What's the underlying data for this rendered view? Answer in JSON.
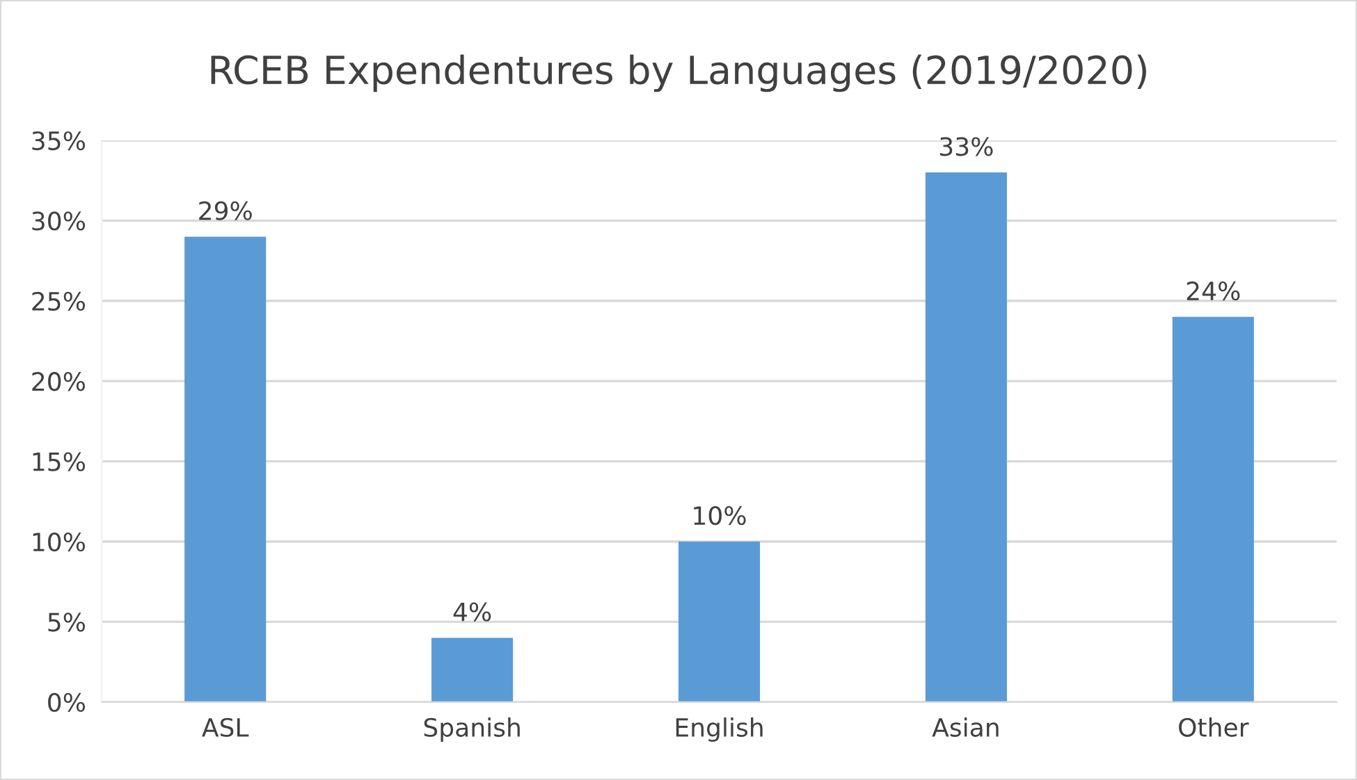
{
  "chart_data": {
    "type": "bar",
    "title": "RCEB Expendentures by Languages (2019/2020)",
    "categories": [
      "ASL",
      "Spanish",
      "English",
      "Asian",
      "Other"
    ],
    "values": [
      29,
      4,
      10,
      33,
      24
    ],
    "value_labels": [
      "29%",
      "4%",
      "10%",
      "33%",
      "24%"
    ],
    "color": "#5b9bd5",
    "ylim": [
      0,
      35
    ],
    "yticks": [
      {
        "value": 0,
        "label": "0%"
      },
      {
        "value": 5,
        "label": "5%"
      },
      {
        "value": 10,
        "label": "10%"
      },
      {
        "value": 15,
        "label": "15%"
      },
      {
        "value": 20,
        "label": "20%"
      },
      {
        "value": 25,
        "label": "25%"
      },
      {
        "value": 30,
        "label": "30%"
      },
      {
        "value": 35,
        "label": "35%"
      }
    ],
    "grid": "y",
    "legend": false
  }
}
